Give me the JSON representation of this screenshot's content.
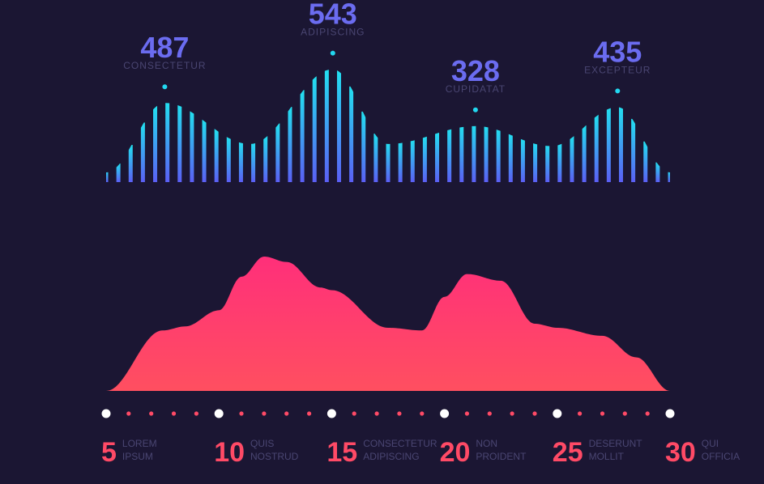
{
  "colors": {
    "background": "#1b1633",
    "bar_top": "#22e0f0",
    "bar_bottom": "#5b5ff5",
    "area_top": "#ff2f7a",
    "area_bottom": "#ff4f60",
    "peak_value": "#6b6cf0",
    "label_muted": "#4a4672",
    "tick_number": "#ff4a66",
    "peak_dot": "#22d8f0",
    "major_dot": "#ffffff",
    "minor_dot": "#ff4a66"
  },
  "chart_data": [
    {
      "type": "bar",
      "description_style": "striped bars forming a wave with four labelled peaks",
      "peaks": [
        {
          "value": "487",
          "label": "CONSECTETUR"
        },
        {
          "value": "543",
          "label": "ADIPISCING"
        },
        {
          "value": "328",
          "label": "CUPIDATAT"
        },
        {
          "value": "435",
          "label": "EXCEPTEUR"
        }
      ],
      "x_relative": [
        0.0,
        0.104,
        0.255,
        0.402,
        0.5,
        0.655,
        0.79,
        0.907,
        1.0
      ],
      "values": [
        0.0,
        0.66,
        0.27,
        0.98,
        0.27,
        0.44,
        0.25,
        0.62,
        0.0
      ]
    },
    {
      "type": "area",
      "x": [
        5,
        10,
        15,
        20,
        25,
        30
      ],
      "x_ticks": [
        {
          "number": "5",
          "line1": "LOREM",
          "line2": "IPSUM"
        },
        {
          "number": "10",
          "line1": "QUIS",
          "line2": "NOSTRUD"
        },
        {
          "number": "15",
          "line1": "CONSECTETUR",
          "line2": "ADIPISCING"
        },
        {
          "number": "20",
          "line1": "NON",
          "line2": "PROIDENT"
        },
        {
          "number": "25",
          "line1": "DESERUNT",
          "line2": "MOLLIT"
        },
        {
          "number": "30",
          "line1": "QUI",
          "line2": "OFFICIA"
        }
      ],
      "curve_x": [
        5,
        7.5,
        8.5,
        10,
        11,
        12,
        13,
        14.5,
        15,
        17.5,
        19,
        20,
        21,
        22.5,
        24,
        25,
        27,
        28.5,
        30
      ],
      "curve_y": [
        0.0,
        0.45,
        0.48,
        0.6,
        0.85,
        1.0,
        0.96,
        0.77,
        0.75,
        0.47,
        0.45,
        0.7,
        0.87,
        0.82,
        0.5,
        0.47,
        0.41,
        0.25,
        0.0
      ],
      "minor_dots_per_gap": 4
    }
  ]
}
